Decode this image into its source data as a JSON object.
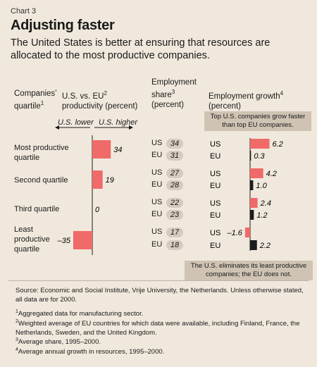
{
  "chart_label": "Chart 3",
  "title": "Adjusting faster",
  "subtitle": "The United States is better at ensuring that resources are allocated to the most productive companies.",
  "headers": {
    "quartile": "Companies’ quartile",
    "quartile_note": "1",
    "productivity": "U.S. vs. EU",
    "productivity_note": "2",
    "productivity_rest": "productivity (percent)",
    "employment_share": "Employment share",
    "employment_share_note": "3",
    "employment_share_unit": "(percent)",
    "employment_growth": "Employment growth",
    "employment_growth_note": "4",
    "employment_growth_unit": "(percent)"
  },
  "axis_labels": {
    "lower": "U.S. lower",
    "higher": "U.S. higher"
  },
  "chart_data": {
    "type": "bar",
    "categories": [
      "Most productive quartile",
      "Second quartile",
      "Third quartile",
      "Least productive quartile"
    ],
    "productivity_gap": [
      34,
      19,
      0,
      -35
    ],
    "employment_share": {
      "US": [
        34,
        27,
        22,
        17
      ],
      "EU": [
        31,
        28,
        23,
        18
      ]
    },
    "employment_growth": {
      "US": [
        6.2,
        4.2,
        2.4,
        -1.6
      ],
      "EU": [
        0.3,
        1.0,
        1.2,
        2.2
      ]
    },
    "series_labels": [
      "US",
      "EU"
    ],
    "colors": {
      "us_bar": "#f06a6a",
      "eu_bar": "#1c1c1c",
      "pill": "#d6cbbd",
      "callout": "#cfc3b3"
    }
  },
  "value_labels": {
    "gap": [
      "34",
      "19",
      "0",
      "–35"
    ],
    "share_us": [
      "34",
      "27",
      "22",
      "17"
    ],
    "share_eu": [
      "31",
      "28",
      "23",
      "18"
    ],
    "growth_us": [
      "6.2",
      "4.2",
      "2.4",
      "–1.6"
    ],
    "growth_eu": [
      "0.3",
      "1.0",
      "1.2",
      "2.2"
    ]
  },
  "category_lines": [
    [
      "Most productive",
      "quartile"
    ],
    [
      "Second quartile"
    ],
    [
      "Third quartile"
    ],
    [
      "Least",
      "productive",
      "quartile"
    ]
  ],
  "callouts": {
    "top": "Top U.S. companies grow faster than top EU companies.",
    "bottom": "The U.S. eliminates its least productive companies; the EU does not."
  },
  "source": "Source: Economic and Social Institute, Vrije University, the Netherlands. Unless otherwise stated, all data are for 2000.",
  "footnotes": [
    {
      "num": "1",
      "text": "Aggregated data for manufacturing sector."
    },
    {
      "num": "2",
      "text": "Weighted average of EU countries for which data were available, including Finland, France, the Netherlands, Sweden, and the United Kingdom."
    },
    {
      "num": "3",
      "text": "Average share, 1995–2000."
    },
    {
      "num": "4",
      "text": "Average annual growth in resources, 1995–2000."
    }
  ]
}
